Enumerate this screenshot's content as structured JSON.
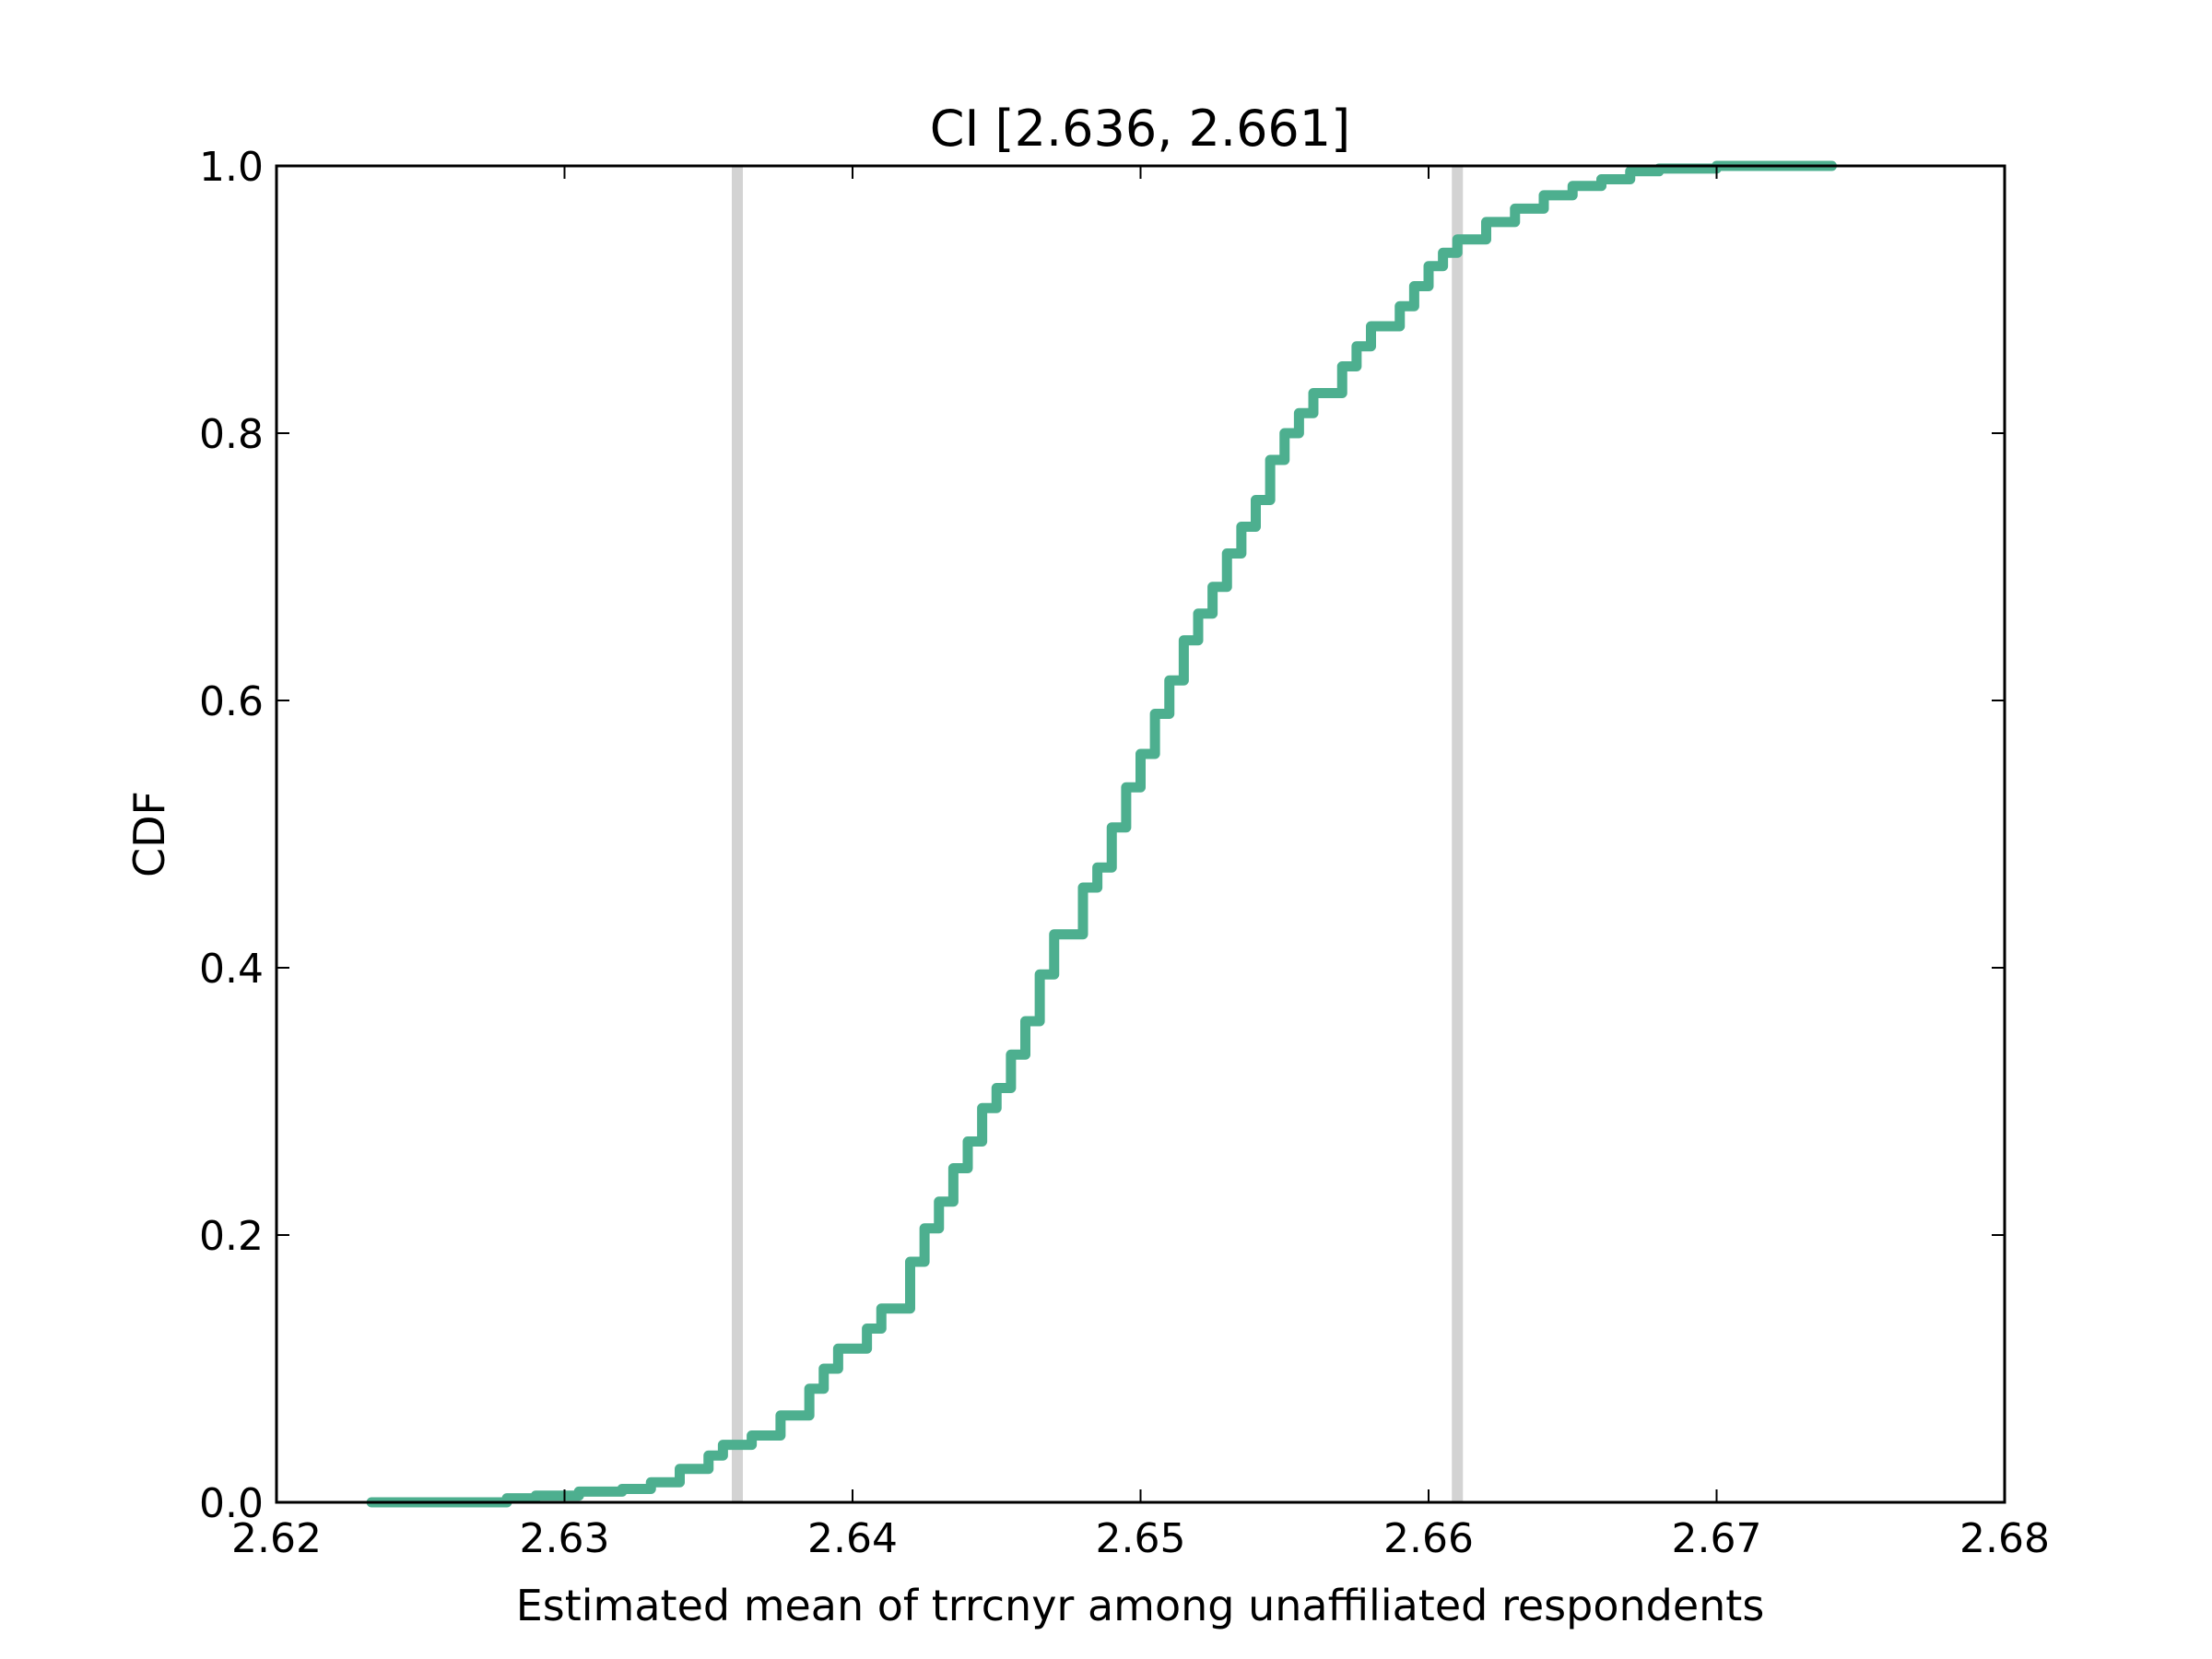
{
  "chart_data": {
    "type": "line",
    "title": "CI [2.636, 2.661]",
    "xlabel": "Estimated mean of trrcnyr among unaffiliated respondents",
    "ylabel": "CDF",
    "xlim": [
      2.62,
      2.68
    ],
    "ylim": [
      0.0,
      1.0
    ],
    "xticks": [
      "2.62",
      "2.63",
      "2.64",
      "2.65",
      "2.66",
      "2.67",
      "2.68"
    ],
    "yticks": [
      "0.0",
      "0.2",
      "0.4",
      "0.6",
      "0.8",
      "1.0"
    ],
    "grid": false,
    "legend": "none",
    "colors": {
      "cdf": "#4daf8f",
      "ci_lines": "#d3d3d3"
    },
    "ci_lines": [
      2.636,
      2.661
    ],
    "series": [
      {
        "x": [
          2.6233,
          2.626,
          2.628,
          2.629,
          2.6305,
          2.632,
          2.633,
          2.634,
          2.635,
          2.6355,
          2.6365,
          2.6375,
          2.6385,
          2.639,
          2.6395,
          2.6405,
          2.641,
          2.642,
          2.6425,
          2.643,
          2.6435,
          2.644,
          2.6445,
          2.645,
          2.6455,
          2.646,
          2.6465,
          2.647,
          2.648,
          2.6485,
          2.649,
          2.6495,
          2.65,
          2.6505,
          2.651,
          2.6515,
          2.652,
          2.6525,
          2.653,
          2.6535,
          2.654,
          2.6545,
          2.655,
          2.6555,
          2.656,
          2.657,
          2.6575,
          2.658,
          2.659,
          2.6595,
          2.66,
          2.6605,
          2.661,
          2.662,
          2.663,
          2.664,
          2.665,
          2.666,
          2.667,
          2.668,
          2.67,
          2.672,
          2.674
        ],
        "y": [
          0.0,
          0.0,
          0.003,
          0.005,
          0.008,
          0.01,
          0.015,
          0.025,
          0.035,
          0.043,
          0.05,
          0.065,
          0.085,
          0.1,
          0.115,
          0.13,
          0.145,
          0.18,
          0.205,
          0.225,
          0.25,
          0.27,
          0.295,
          0.31,
          0.335,
          0.36,
          0.395,
          0.425,
          0.46,
          0.475,
          0.505,
          0.535,
          0.56,
          0.59,
          0.615,
          0.645,
          0.665,
          0.685,
          0.71,
          0.73,
          0.75,
          0.78,
          0.8,
          0.815,
          0.83,
          0.85,
          0.865,
          0.88,
          0.895,
          0.91,
          0.925,
          0.935,
          0.945,
          0.958,
          0.968,
          0.978,
          0.985,
          0.99,
          0.996,
          0.998,
          1.0,
          1.0,
          1.0
        ]
      }
    ]
  }
}
